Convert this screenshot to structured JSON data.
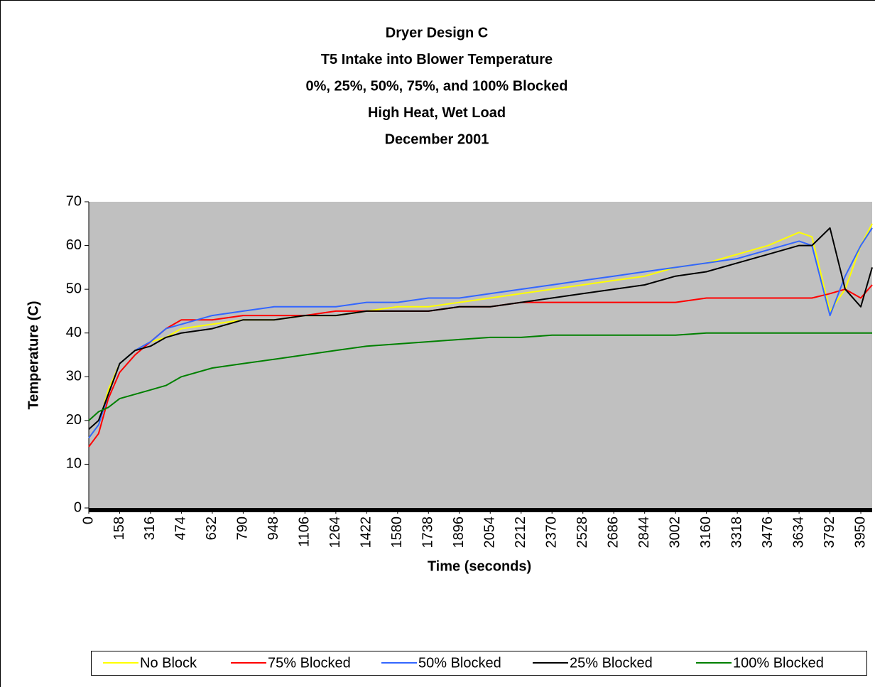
{
  "chart_data": {
    "type": "line",
    "title": [
      "Dryer Design C",
      "T5 Intake into Blower Temperature",
      "0%, 25%, 50%, 75%, and 100% Blocked",
      "High Heat, Wet Load",
      "December 2001"
    ],
    "x_label": "Time (seconds)",
    "y_label": "Temperature (C)",
    "x": [
      0,
      50,
      100,
      158,
      237,
      316,
      395,
      474,
      632,
      790,
      948,
      1106,
      1264,
      1422,
      1580,
      1738,
      1896,
      2054,
      2212,
      2370,
      2528,
      2686,
      2844,
      3002,
      3160,
      3318,
      3476,
      3634,
      3700,
      3792,
      3870,
      3950,
      4008
    ],
    "series": [
      {
        "name": "No Block",
        "color": "#ffff00",
        "values": [
          16,
          19,
          27,
          33,
          36,
          38,
          39,
          41,
          42,
          43,
          43,
          44,
          44,
          45,
          46,
          46,
          47,
          48,
          49,
          50,
          51,
          52,
          53,
          55,
          56,
          58,
          60,
          63,
          62,
          45,
          50,
          60,
          65
        ]
      },
      {
        "name": "75% Blocked",
        "color": "#ff0000",
        "values": [
          14,
          17,
          25,
          31,
          35,
          38,
          41,
          43,
          43,
          44,
          44,
          44,
          45,
          45,
          45,
          45,
          46,
          46,
          47,
          47,
          47,
          47,
          47,
          47,
          48,
          48,
          48,
          48,
          48,
          49,
          50,
          48,
          51
        ]
      },
      {
        "name": "50% Blocked",
        "color": "#3366ff",
        "values": [
          16,
          19,
          26,
          33,
          36,
          38,
          41,
          42,
          44,
          45,
          46,
          46,
          46,
          47,
          47,
          48,
          48,
          49,
          50,
          51,
          52,
          53,
          54,
          55,
          56,
          57,
          59,
          61,
          60,
          44,
          53,
          60,
          64
        ]
      },
      {
        "name": "25% Blocked",
        "color": "#000000",
        "values": [
          18,
          20,
          26,
          33,
          36,
          37,
          39,
          40,
          41,
          43,
          43,
          44,
          44,
          45,
          45,
          45,
          46,
          46,
          47,
          48,
          49,
          50,
          51,
          53,
          54,
          56,
          58,
          60,
          60,
          64,
          50,
          46,
          55
        ]
      },
      {
        "name": "100% Blocked",
        "color": "#008000",
        "values": [
          20,
          22,
          23,
          25,
          26,
          27,
          28,
          30,
          32,
          33,
          34,
          35,
          36,
          37,
          37.5,
          38,
          38.5,
          39,
          39,
          39.5,
          39.5,
          39.5,
          39.5,
          39.5,
          40,
          40,
          40,
          40,
          40,
          40,
          40,
          40,
          40
        ]
      }
    ],
    "xlim": [
      0,
      4008
    ],
    "xticks": [
      0,
      158,
      316,
      474,
      632,
      790,
      948,
      1106,
      1264,
      1422,
      1580,
      1738,
      1896,
      2054,
      2212,
      2370,
      2528,
      2686,
      2844,
      3002,
      3160,
      3318,
      3476,
      3634,
      3792,
      3950
    ],
    "ylim": [
      0,
      70
    ],
    "yticks": [
      0,
      10,
      20,
      30,
      40,
      50,
      60,
      70
    ],
    "grid": false,
    "legend": "bottom",
    "plot_background": "#c0c0c0"
  }
}
